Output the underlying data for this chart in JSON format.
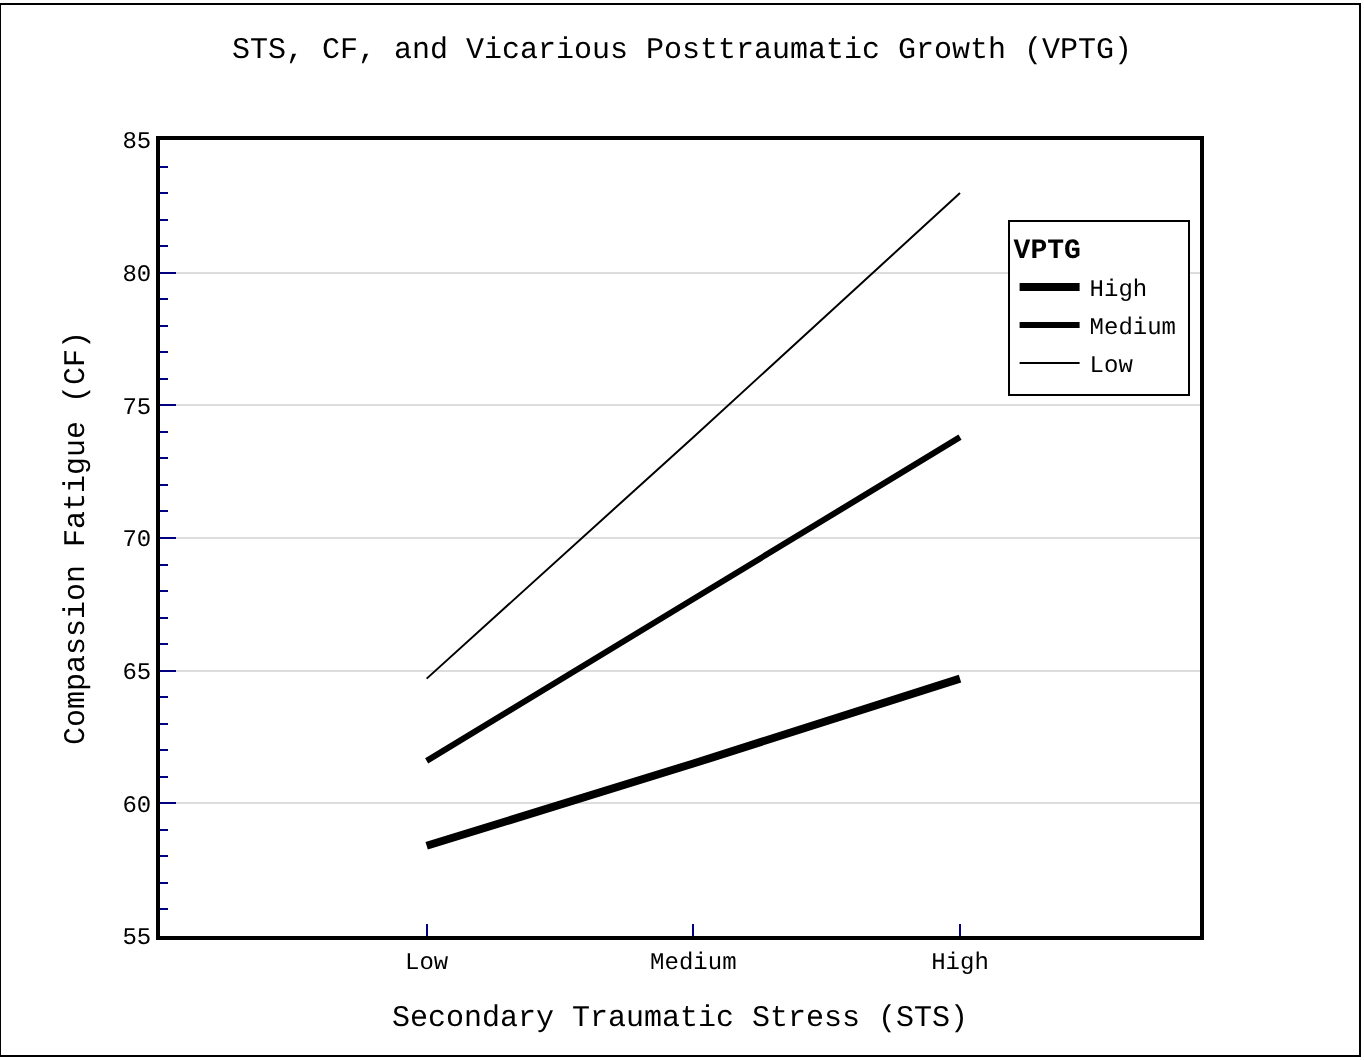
{
  "chart_data": {
    "type": "line",
    "title": "STS, CF, and Vicarious Posttraumatic Growth (VPTG)",
    "xlabel": "Secondary Traumatic Stress (STS)",
    "ylabel": "Compassion Fatigue (CF)",
    "legend_title": "VPTG",
    "categories": [
      "Low",
      "Medium",
      "High"
    ],
    "series": [
      {
        "name": "High",
        "color": "#000000",
        "values": [
          58.4,
          61.5,
          64.7
        ]
      },
      {
        "name": "Medium",
        "color": "#000000",
        "values": [
          61.6,
          67.7,
          73.8
        ]
      },
      {
        "name": "Low",
        "color": "#000000",
        "values": [
          64.7,
          73.8,
          83.0
        ]
      }
    ],
    "ylim": [
      55,
      85
    ],
    "yticks": [
      55,
      60,
      65,
      70,
      75,
      80,
      85
    ],
    "grid": "y",
    "legend": "top right",
    "marker": "none",
    "line_style": "solid"
  }
}
